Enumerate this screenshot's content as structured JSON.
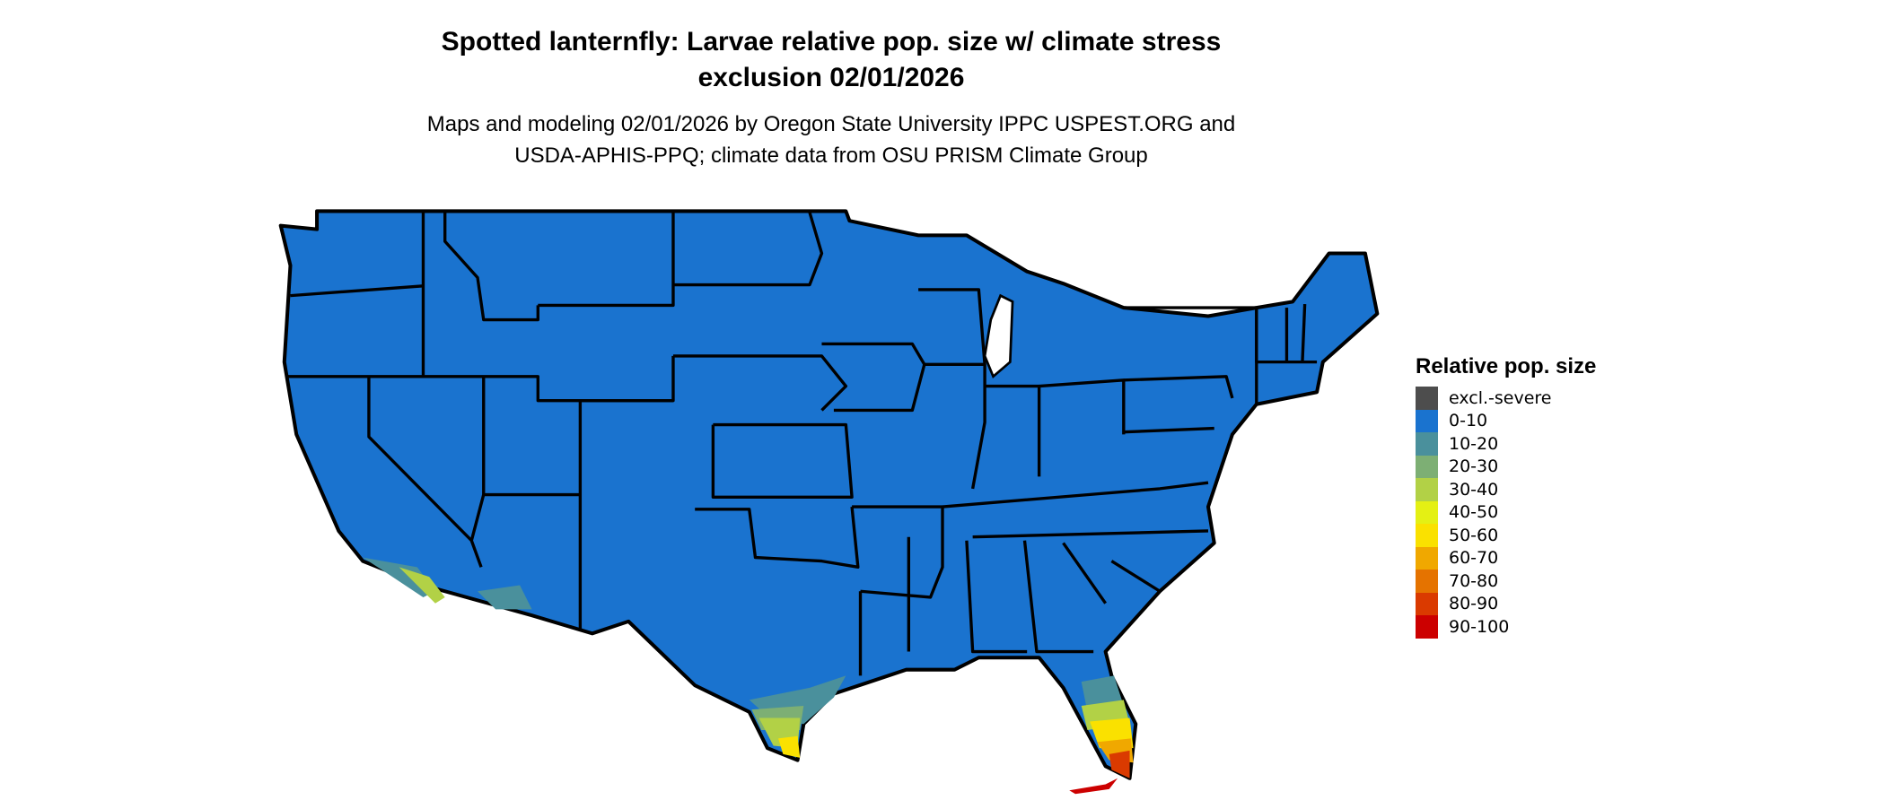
{
  "title": [
    "Spotted lanternfly: Larvae relative pop. size w/ climate stress",
    "exclusion 02/01/2026"
  ],
  "subtitle": [
    "Maps and modeling 02/01/2026 by Oregon State University IPPC USPEST.ORG and",
    "USDA-APHIS-PPQ; climate data from OSU PRISM Climate Group"
  ],
  "legend": {
    "title": "Relative pop. size",
    "items": [
      {
        "label": "excl.-severe",
        "color": "#4d4d4d"
      },
      {
        "label": "0-10",
        "color": "#1a73cf"
      },
      {
        "label": "10-20",
        "color": "#4a909c"
      },
      {
        "label": "20-30",
        "color": "#7daf74"
      },
      {
        "label": "30-40",
        "color": "#b2d146"
      },
      {
        "label": "40-50",
        "color": "#e4f014"
      },
      {
        "label": "50-60",
        "color": "#fae100"
      },
      {
        "label": "60-70",
        "color": "#f0a800"
      },
      {
        "label": "70-80",
        "color": "#e57300"
      },
      {
        "label": "80-90",
        "color": "#da3a00"
      },
      {
        "label": "90-100",
        "color": "#cc0000"
      }
    ]
  },
  "map": {
    "region": "Contiguous United States",
    "base_color": "#1a73cf",
    "border_color": "#000000"
  }
}
